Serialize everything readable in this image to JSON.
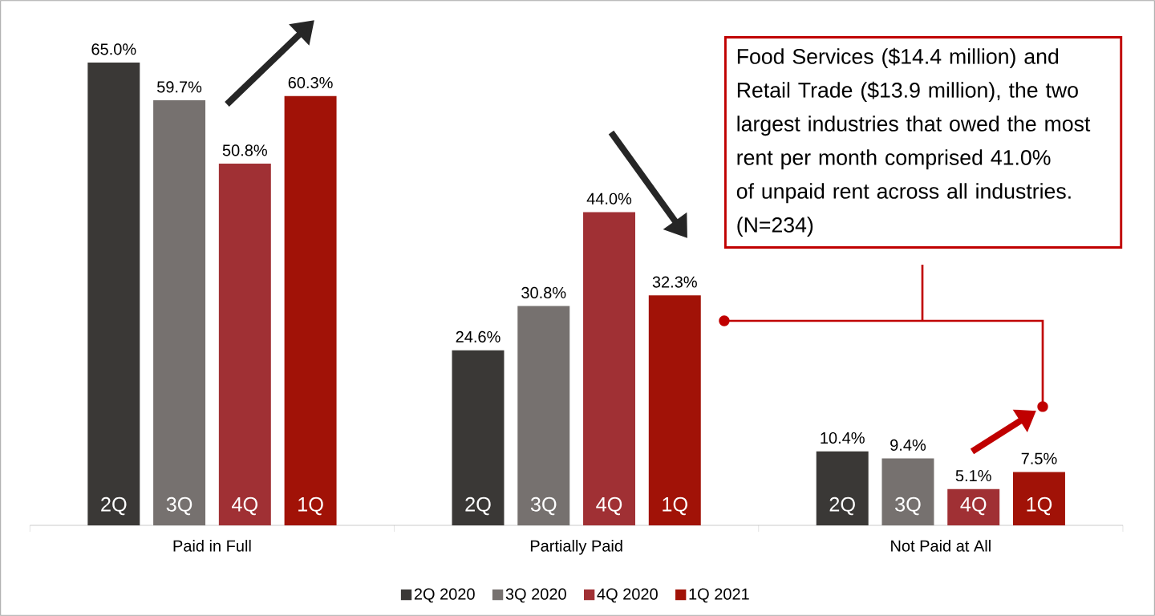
{
  "chart_data": {
    "type": "bar",
    "categories": [
      "Paid in Full",
      "Partially Paid",
      "Not Paid at All"
    ],
    "series": [
      {
        "name": "2Q 2020",
        "color": "#3a3836",
        "values": [
          65.0,
          24.6,
          10.4
        ],
        "value_labels": [
          "65.0%",
          "24.6%",
          "10.4%"
        ]
      },
      {
        "name": "3Q 2020",
        "color": "#76716f",
        "values": [
          59.7,
          30.8,
          9.4
        ],
        "value_labels": [
          "59.7%",
          "30.8%",
          "9.4%"
        ]
      },
      {
        "name": "4Q 2020",
        "color": "#a03034",
        "values": [
          50.8,
          44.0,
          5.1
        ],
        "value_labels": [
          "50.8%",
          "44.0%",
          "5.1%"
        ]
      },
      {
        "name": "1Q 2021",
        "color": "#a11207",
        "values": [
          60.3,
          32.3,
          7.5
        ],
        "value_labels": [
          "60.3%",
          "32.3%",
          "7.5%"
        ]
      }
    ],
    "annotations": [
      "2Q",
      "3Q",
      "4Q",
      "1Q",
      "2Q",
      "3Q",
      "4Q",
      "1Q",
      "2Q",
      "3Q",
      "4Q",
      "1Q",
      "Food Services ($14.4 million) and Retail Trade ($13.9 million), the two largest industries that owed the most rent per month comprised 41.0% of unpaid rent across all industries. (N=234)"
    ],
    "legend": "bottom"
  }
}
